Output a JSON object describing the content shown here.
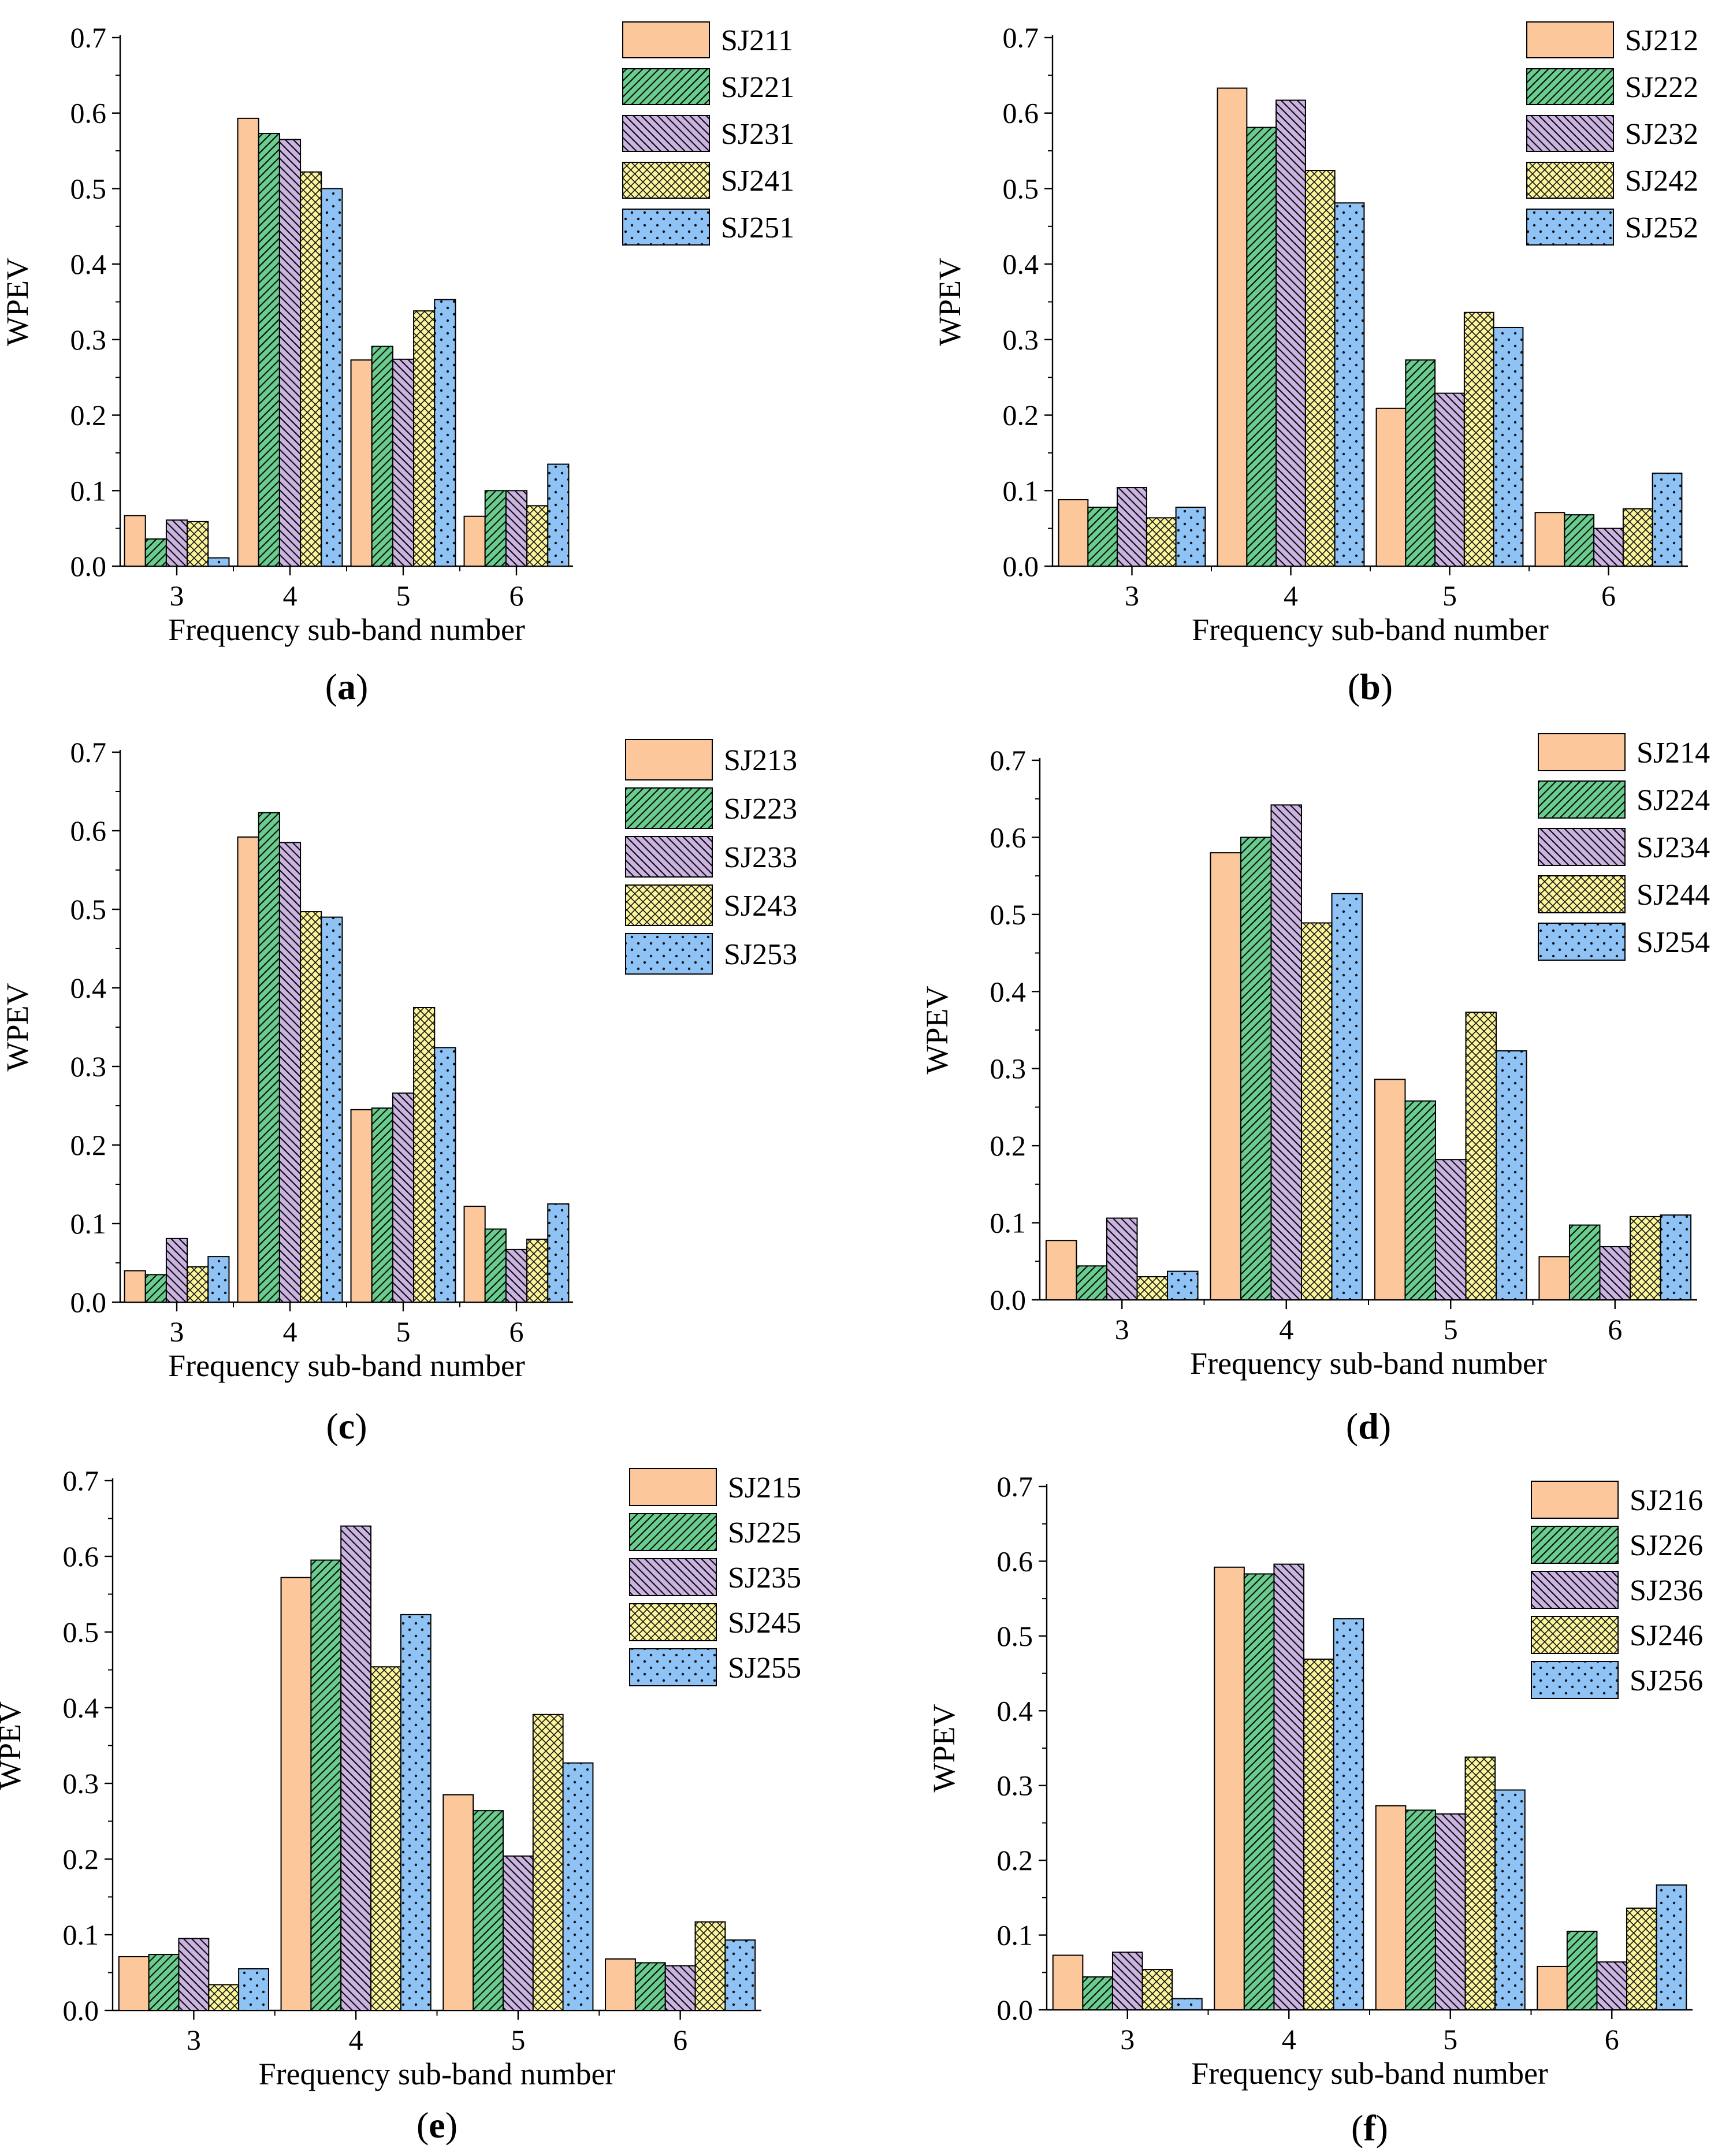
{
  "colors": {
    "series": [
      "#fbc79b",
      "#69cd8e",
      "#cbb3e2",
      "#fbf59b",
      "#8fc3f6"
    ],
    "stroke": "#000000"
  },
  "patterns": [
    "solid",
    "diagonal-right",
    "diagonal-left",
    "crosshatch",
    "dots"
  ],
  "chart_data": [
    {
      "type": "bar",
      "panel_label": "a",
      "xlabel": "Frequency sub-band number",
      "ylabel": "WPEV",
      "ylim": [
        0,
        0.7
      ],
      "yticks": [
        "0.0",
        "0.1",
        "0.2",
        "0.3",
        "0.4",
        "0.5",
        "0.6",
        "0.7"
      ],
      "categories": [
        "3",
        "4",
        "5",
        "6"
      ],
      "legend_position": "top-right",
      "series": [
        {
          "name": "SJ211",
          "values": [
            0.067,
            0.593,
            0.273,
            0.066
          ]
        },
        {
          "name": "SJ221",
          "values": [
            0.036,
            0.573,
            0.291,
            0.1
          ]
        },
        {
          "name": "SJ231",
          "values": [
            0.061,
            0.565,
            0.274,
            0.1
          ]
        },
        {
          "name": "SJ241",
          "values": [
            0.059,
            0.522,
            0.338,
            0.08
          ]
        },
        {
          "name": "SJ251",
          "values": [
            0.011,
            0.5,
            0.353,
            0.135
          ]
        }
      ]
    },
    {
      "type": "bar",
      "panel_label": "b",
      "xlabel": "Frequency sub-band number",
      "ylabel": "WPEV",
      "ylim": [
        0,
        0.7
      ],
      "yticks": [
        "0.0",
        "0.1",
        "0.2",
        "0.3",
        "0.4",
        "0.5",
        "0.6",
        "0.7"
      ],
      "categories": [
        "3",
        "4",
        "5",
        "6"
      ],
      "legend_position": "top-right",
      "series": [
        {
          "name": "SJ212",
          "values": [
            0.088,
            0.633,
            0.209,
            0.071
          ]
        },
        {
          "name": "SJ222",
          "values": [
            0.078,
            0.581,
            0.273,
            0.068
          ]
        },
        {
          "name": "SJ232",
          "values": [
            0.104,
            0.617,
            0.229,
            0.05
          ]
        },
        {
          "name": "SJ242",
          "values": [
            0.064,
            0.524,
            0.336,
            0.076
          ]
        },
        {
          "name": "SJ252",
          "values": [
            0.078,
            0.481,
            0.316,
            0.123
          ]
        }
      ]
    },
    {
      "type": "bar",
      "panel_label": "c",
      "xlabel": "Frequency sub-band number",
      "ylabel": "WPEV",
      "ylim": [
        0,
        0.7
      ],
      "yticks": [
        "0.0",
        "0.1",
        "0.2",
        "0.3",
        "0.4",
        "0.5",
        "0.6",
        "0.7"
      ],
      "categories": [
        "3",
        "4",
        "5",
        "6"
      ],
      "legend_position": "top-right",
      "series": [
        {
          "name": "SJ213",
          "values": [
            0.04,
            0.592,
            0.245,
            0.122
          ]
        },
        {
          "name": "SJ223",
          "values": [
            0.035,
            0.623,
            0.247,
            0.093
          ]
        },
        {
          "name": "SJ233",
          "values": [
            0.081,
            0.585,
            0.266,
            0.067
          ]
        },
        {
          "name": "SJ243",
          "values": [
            0.045,
            0.497,
            0.375,
            0.08
          ]
        },
        {
          "name": "SJ253",
          "values": [
            0.058,
            0.49,
            0.324,
            0.125
          ]
        }
      ]
    },
    {
      "type": "bar",
      "panel_label": "d",
      "xlabel": "Frequency sub-band number",
      "ylabel": "WPEV",
      "ylim": [
        0,
        0.7
      ],
      "yticks": [
        "0.0",
        "0.1",
        "0.2",
        "0.3",
        "0.4",
        "0.5",
        "0.6",
        "0.7"
      ],
      "categories": [
        "3",
        "4",
        "5",
        "6"
      ],
      "legend_position": "top-right",
      "series": [
        {
          "name": "SJ214",
          "values": [
            0.077,
            0.58,
            0.286,
            0.056
          ]
        },
        {
          "name": "SJ224",
          "values": [
            0.044,
            0.6,
            0.258,
            0.097
          ]
        },
        {
          "name": "SJ234",
          "values": [
            0.106,
            0.642,
            0.182,
            0.069
          ]
        },
        {
          "name": "SJ244",
          "values": [
            0.03,
            0.489,
            0.373,
            0.108
          ]
        },
        {
          "name": "SJ254",
          "values": [
            0.037,
            0.527,
            0.323,
            0.11
          ]
        }
      ]
    },
    {
      "type": "bar",
      "panel_label": "e",
      "xlabel": "Frequency sub-band number",
      "ylabel": "WPEV",
      "ylim": [
        0,
        0.7
      ],
      "yticks": [
        "0.0",
        "0.1",
        "0.2",
        "0.3",
        "0.4",
        "0.5",
        "0.6",
        "0.7"
      ],
      "categories": [
        "3",
        "4",
        "5",
        "6"
      ],
      "legend_position": "top-right",
      "series": [
        {
          "name": "SJ215",
          "values": [
            0.071,
            0.572,
            0.285,
            0.068
          ]
        },
        {
          "name": "SJ225",
          "values": [
            0.074,
            0.595,
            0.264,
            0.063
          ]
        },
        {
          "name": "SJ235",
          "values": [
            0.095,
            0.64,
            0.204,
            0.059
          ]
        },
        {
          "name": "SJ245",
          "values": [
            0.034,
            0.454,
            0.391,
            0.117
          ]
        },
        {
          "name": "SJ255",
          "values": [
            0.055,
            0.523,
            0.327,
            0.093
          ]
        }
      ]
    },
    {
      "type": "bar",
      "panel_label": "f",
      "xlabel": "Frequency sub-band number",
      "ylabel": "WPEV",
      "ylim": [
        0,
        0.7
      ],
      "yticks": [
        "0.0",
        "0.1",
        "0.2",
        "0.3",
        "0.4",
        "0.5",
        "0.6",
        "0.7"
      ],
      "categories": [
        "3",
        "4",
        "5",
        "6"
      ],
      "legend_position": "top-right",
      "series": [
        {
          "name": "SJ216",
          "values": [
            0.073,
            0.592,
            0.273,
            0.058
          ]
        },
        {
          "name": "SJ226",
          "values": [
            0.044,
            0.583,
            0.267,
            0.105
          ]
        },
        {
          "name": "SJ236",
          "values": [
            0.077,
            0.596,
            0.262,
            0.064
          ]
        },
        {
          "name": "SJ246",
          "values": [
            0.054,
            0.469,
            0.338,
            0.136
          ]
        },
        {
          "name": "SJ256",
          "values": [
            0.015,
            0.523,
            0.294,
            0.167
          ]
        }
      ]
    }
  ]
}
